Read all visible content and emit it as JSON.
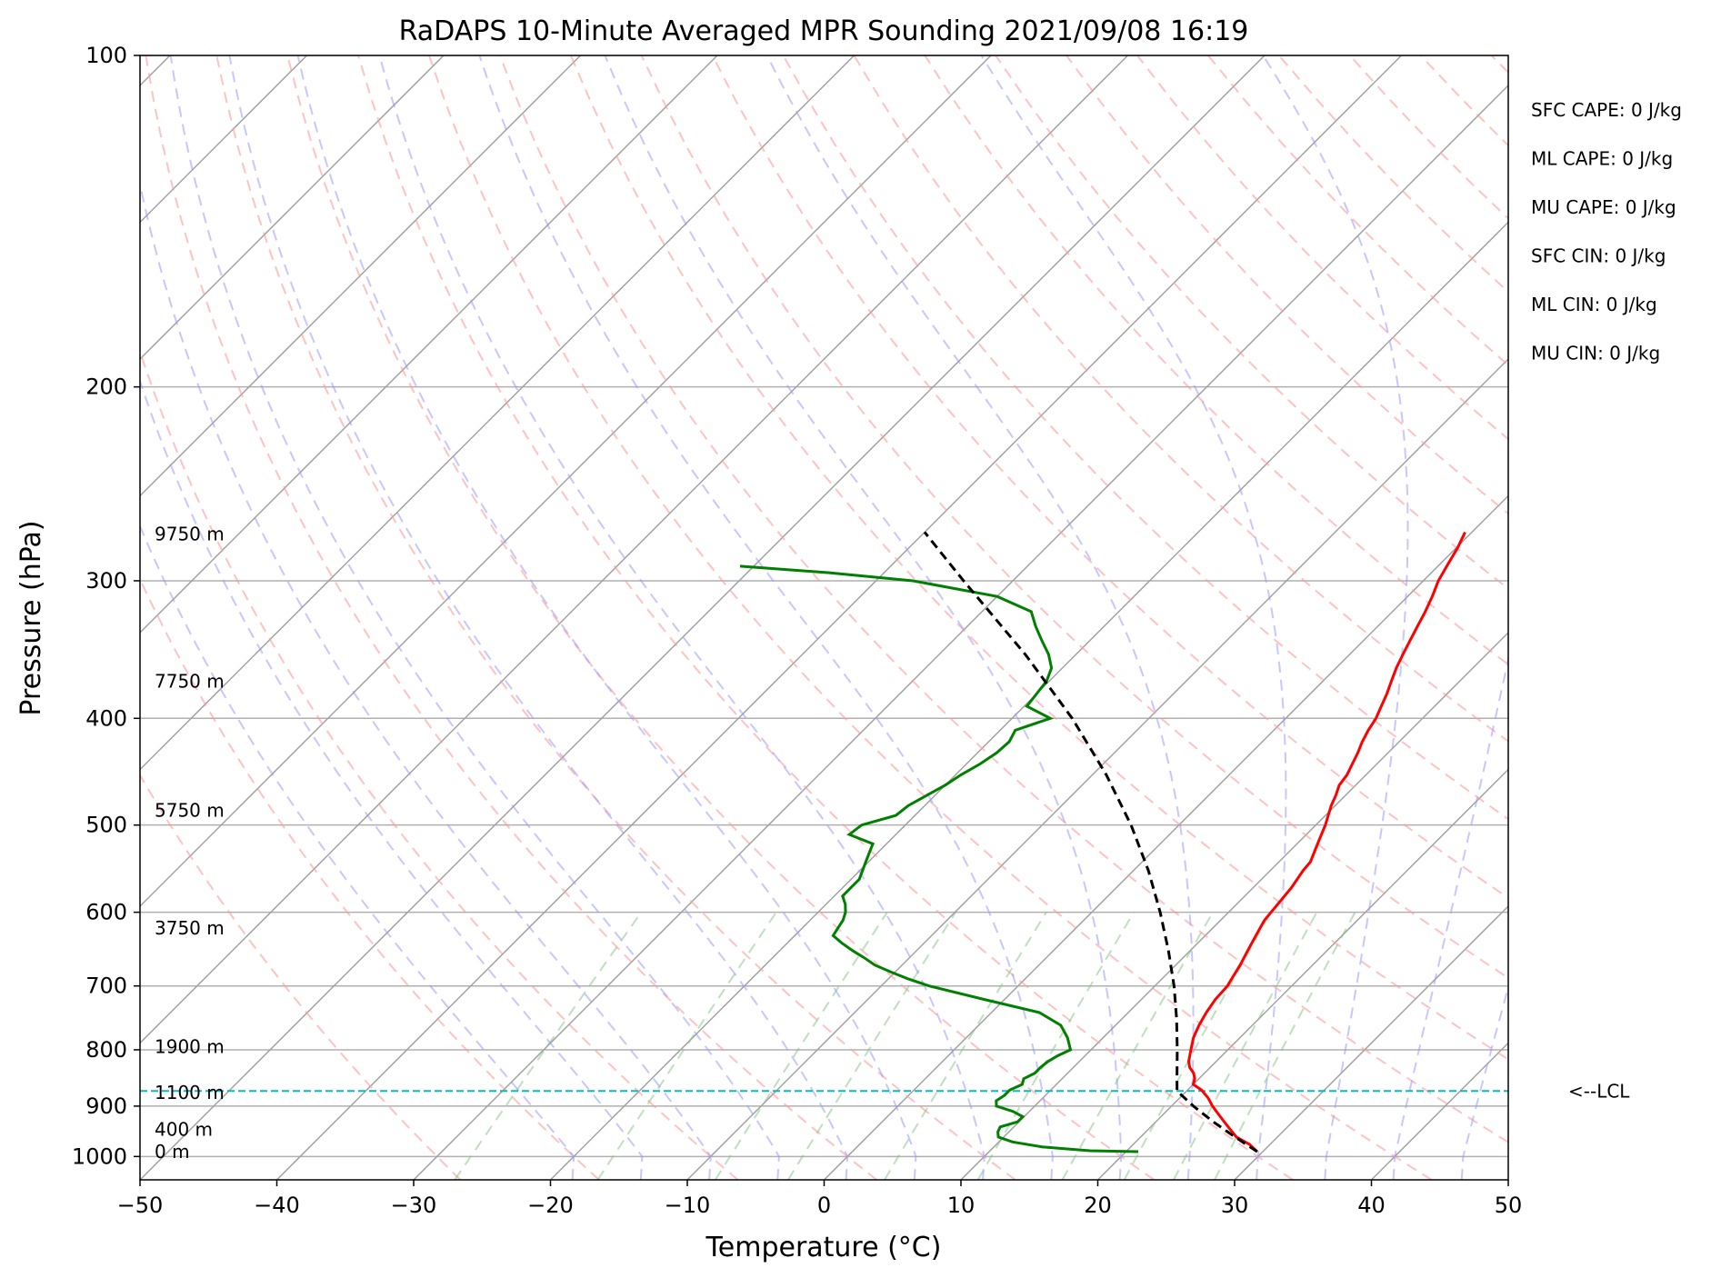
{
  "chart_data": {
    "type": "skew-t log-p sounding",
    "title": "RaDAPS 10-Minute Averaged MPR Sounding 2021/09/08 16:19",
    "xlabel": "Temperature (°C)",
    "ylabel": "Pressure (hPa)",
    "xlim": [
      -50,
      50
    ],
    "ylim_hpa": [
      1050,
      100
    ],
    "x_ticks": [
      "−50",
      "−40",
      "−30",
      "−20",
      "−10",
      "0",
      "10",
      "20",
      "30",
      "40",
      "50"
    ],
    "y_ticks": [
      "100",
      "200",
      "300",
      "400",
      "500",
      "600",
      "700",
      "800",
      "900",
      "1000"
    ],
    "grid": true,
    "height_labels": [
      "9750 m",
      "7750 m",
      "5750 m",
      "3750 m",
      "1900 m",
      "1100 m",
      "400 m",
      "0 m"
    ],
    "temperature_series": {
      "name": "",
      "color": "#ff0000",
      "points": [
        [
          990,
          29.6
        ],
        [
          975,
          28.5
        ],
        [
          960,
          27.0
        ],
        [
          945,
          26.0
        ],
        [
          930,
          25.0
        ],
        [
          915,
          24.0
        ],
        [
          900,
          23.0
        ],
        [
          885,
          22.1
        ],
        [
          870,
          21.0
        ],
        [
          860,
          20.0
        ],
        [
          850,
          19.7
        ],
        [
          840,
          19.2
        ],
        [
          830,
          18.5
        ],
        [
          820,
          18.0
        ],
        [
          800,
          17.3
        ],
        [
          780,
          16.6
        ],
        [
          760,
          16.1
        ],
        [
          740,
          15.7
        ],
        [
          720,
          15.4
        ],
        [
          700,
          15.3
        ],
        [
          690,
          15.1
        ],
        [
          670,
          14.7
        ],
        [
          650,
          14.2
        ],
        [
          630,
          13.7
        ],
        [
          610,
          13.2
        ],
        [
          590,
          13.0
        ],
        [
          570,
          12.8
        ],
        [
          550,
          12.4
        ],
        [
          540,
          12.3
        ],
        [
          530,
          11.9
        ],
        [
          520,
          11.5
        ],
        [
          510,
          11.1
        ],
        [
          500,
          10.7
        ],
        [
          490,
          10.2
        ],
        [
          480,
          9.7
        ],
        [
          470,
          9.3
        ],
        [
          460,
          8.8
        ],
        [
          450,
          8.6
        ],
        [
          440,
          8.2
        ],
        [
          430,
          7.8
        ],
        [
          420,
          7.3
        ],
        [
          410,
          6.9
        ],
        [
          400,
          6.6
        ],
        [
          390,
          6.1
        ],
        [
          380,
          5.6
        ],
        [
          370,
          5.0
        ],
        [
          360,
          4.4
        ],
        [
          350,
          3.9
        ],
        [
          340,
          3.4
        ],
        [
          330,
          2.9
        ],
        [
          320,
          2.4
        ],
        [
          310,
          1.8
        ],
        [
          300,
          1.1
        ],
        [
          290,
          0.6
        ],
        [
          280,
          0.1
        ],
        [
          271,
          -0.5
        ]
      ]
    },
    "dewpoint_series": {
      "name": "",
      "color": "#008000",
      "points": [
        [
          990,
          20.9
        ],
        [
          988,
          17.3
        ],
        [
          980,
          13.5
        ],
        [
          970,
          11.0
        ],
        [
          960,
          9.6
        ],
        [
          950,
          9.2
        ],
        [
          940,
          9.0
        ],
        [
          930,
          9.9
        ],
        [
          920,
          9.9
        ],
        [
          910,
          8.8
        ],
        [
          900,
          7.2
        ],
        [
          890,
          6.8
        ],
        [
          880,
          7.0
        ],
        [
          870,
          7.0
        ],
        [
          860,
          7.5
        ],
        [
          850,
          7.2
        ],
        [
          840,
          7.6
        ],
        [
          830,
          7.6
        ],
        [
          820,
          7.7
        ],
        [
          810,
          8.0
        ],
        [
          800,
          8.5
        ],
        [
          780,
          7.4
        ],
        [
          760,
          6.0
        ],
        [
          740,
          3.5
        ],
        [
          720,
          -1.5
        ],
        [
          700,
          -6.5
        ],
        [
          690,
          -8.5
        ],
        [
          680,
          -10.3
        ],
        [
          670,
          -12.0
        ],
        [
          660,
          -13.3
        ],
        [
          650,
          -14.7
        ],
        [
          640,
          -16.0
        ],
        [
          630,
          -17.2
        ],
        [
          620,
          -17.4
        ],
        [
          610,
          -17.6
        ],
        [
          600,
          -18.0
        ],
        [
          590,
          -18.6
        ],
        [
          580,
          -19.4
        ],
        [
          570,
          -19.4
        ],
        [
          560,
          -19.4
        ],
        [
          550,
          -19.8
        ],
        [
          540,
          -20.2
        ],
        [
          530,
          -20.6
        ],
        [
          520,
          -21.0
        ],
        [
          510,
          -23.4
        ],
        [
          500,
          -23.2
        ],
        [
          490,
          -21.4
        ],
        [
          480,
          -21.2
        ],
        [
          470,
          -20.6
        ],
        [
          460,
          -20.0
        ],
        [
          450,
          -19.6
        ],
        [
          440,
          -19.0
        ],
        [
          430,
          -18.6
        ],
        [
          420,
          -18.5
        ],
        [
          410,
          -18.9
        ],
        [
          400,
          -17.2
        ],
        [
          390,
          -19.8
        ],
        [
          380,
          -20.0
        ],
        [
          370,
          -20.2
        ],
        [
          360,
          -20.8
        ],
        [
          350,
          -22.0
        ],
        [
          340,
          -23.5
        ],
        [
          330,
          -25.0
        ],
        [
          320,
          -26.4
        ],
        [
          310,
          -30.0
        ],
        [
          300,
          -37.3
        ],
        [
          295,
          -44.0
        ],
        [
          291,
          -51.0
        ]
      ]
    },
    "parcel_profile": {
      "name": "",
      "color": "#000000",
      "style": "dashed",
      "points": [
        [
          990,
          29.6
        ],
        [
          960,
          26.9
        ],
        [
          930,
          24.2
        ],
        [
          900,
          21.6
        ],
        [
          872,
          19.3
        ],
        [
          850,
          18.4
        ],
        [
          800,
          16.3
        ],
        [
          750,
          14.0
        ],
        [
          700,
          11.4
        ],
        [
          650,
          8.4
        ],
        [
          600,
          5.0
        ],
        [
          550,
          1.1
        ],
        [
          500,
          -3.5
        ],
        [
          450,
          -9.0
        ],
        [
          400,
          -15.6
        ],
        [
          350,
          -23.7
        ],
        [
          300,
          -33.6
        ],
        [
          271,
          -40.0
        ]
      ]
    },
    "lcl": {
      "pressure_hpa": 872,
      "label": "<--LCL",
      "color": "#00bfbf"
    },
    "indices": [
      {
        "label": "SFC CAPE: 0 J/kg"
      },
      {
        "label": "ML CAPE: 0 J/kg"
      },
      {
        "label": "MU CAPE: 0 J/kg"
      },
      {
        "label": "SFC CIN: 0 J/kg"
      },
      {
        "label": "ML CIN: 0 J/kg"
      },
      {
        "label": "MU CIN: 0 J/kg"
      }
    ],
    "reference_lines": {
      "isotherms_color": "#a0a0a0",
      "dry_adiabats_color": "#ff9999",
      "moist_adiabats_color": "#9999ff",
      "mixing_ratio_color": "#80c080"
    }
  }
}
